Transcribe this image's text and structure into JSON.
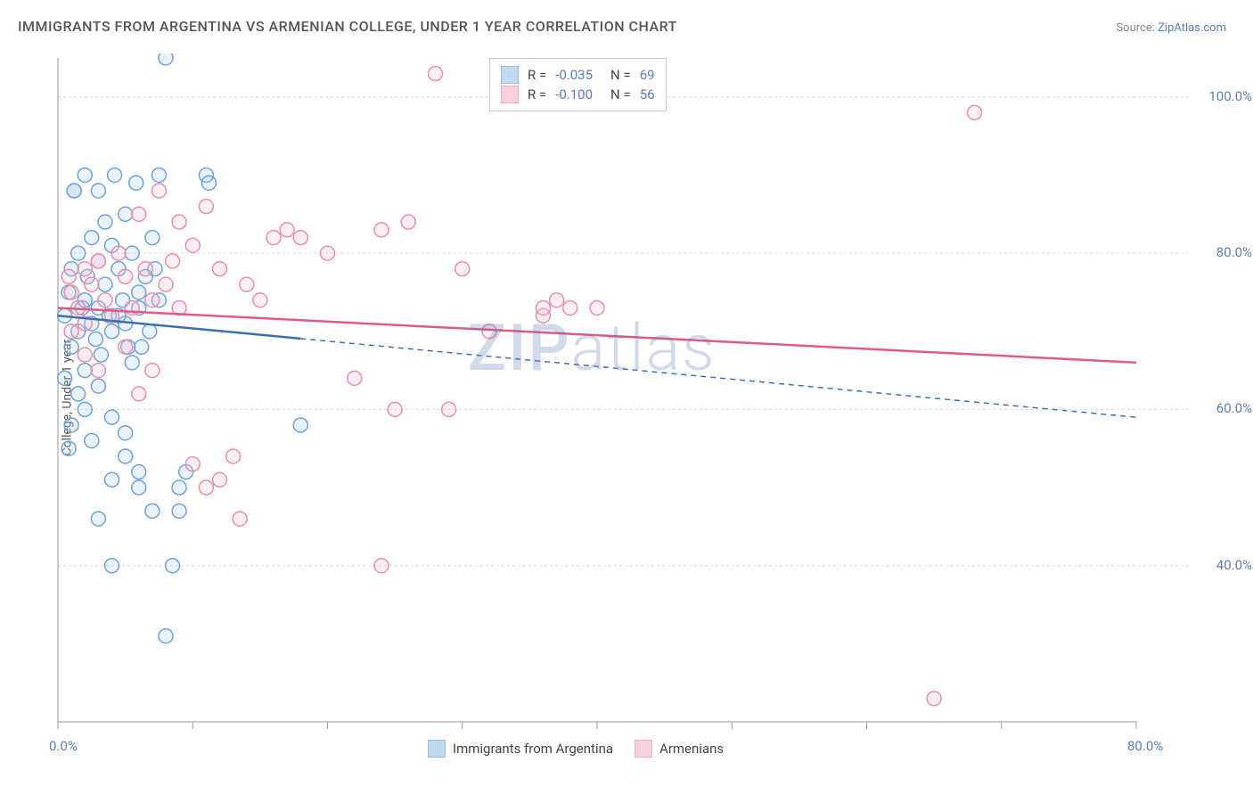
{
  "title": "IMMIGRANTS FROM ARGENTINA VS ARMENIAN COLLEGE, UNDER 1 YEAR CORRELATION CHART",
  "source_label": "Source:",
  "source_link": "ZipAtlas.com",
  "y_axis_label": "College, Under 1 year",
  "watermark": "ZIPatlas",
  "chart": {
    "type": "scatter",
    "xlim": [
      0,
      80
    ],
    "ylim": [
      20,
      105
    ],
    "x_ticks": [
      0,
      10,
      20,
      30,
      40,
      50,
      60,
      70,
      80
    ],
    "x_tick_labels": [
      "0.0%",
      "",
      "",
      "",
      "",
      "",
      "",
      "",
      "80.0%"
    ],
    "y_ticks": [
      40,
      60,
      80,
      100
    ],
    "y_tick_labels": [
      "40.0%",
      "60.0%",
      "80.0%",
      "100.0%"
    ],
    "grid_color": "#d8d8d8",
    "axis_color": "#999999",
    "background_color": "#ffffff",
    "marker_radius": 8,
    "marker_stroke_width": 1.5,
    "marker_fill_opacity": 0.25,
    "regression_line_width": 2.5,
    "series": [
      {
        "name": "Immigrants from Argentina",
        "color_stroke": "#6fa3d8",
        "color_fill": "#a8c9e8",
        "line_color": "#3b6fb5",
        "R": "-0.035",
        "N": "69",
        "regression": {
          "x1": 0,
          "y1": 72,
          "x2": 80,
          "y2": 59,
          "solid_until_x": 18
        },
        "points": [
          [
            0.5,
            72
          ],
          [
            0.8,
            75
          ],
          [
            1,
            78
          ],
          [
            1,
            68
          ],
          [
            1.2,
            88
          ],
          [
            1.5,
            80
          ],
          [
            1.5,
            70
          ],
          [
            1.8,
            73
          ],
          [
            2,
            90
          ],
          [
            2,
            65
          ],
          [
            2,
            74
          ],
          [
            2.2,
            77
          ],
          [
            2.5,
            82
          ],
          [
            2.5,
            71
          ],
          [
            2.8,
            69
          ],
          [
            3,
            88
          ],
          [
            3,
            79
          ],
          [
            3,
            73
          ],
          [
            3.2,
            67
          ],
          [
            3.5,
            84
          ],
          [
            3.5,
            76
          ],
          [
            3.8,
            72
          ],
          [
            4,
            81
          ],
          [
            4,
            70
          ],
          [
            4.2,
            90
          ],
          [
            4.5,
            78
          ],
          [
            4.8,
            74
          ],
          [
            5,
            85
          ],
          [
            5,
            71
          ],
          [
            5.2,
            68
          ],
          [
            5.5,
            80
          ],
          [
            5.8,
            89
          ],
          [
            6,
            75
          ],
          [
            6,
            73
          ],
          [
            6.5,
            77
          ],
          [
            6.8,
            70
          ],
          [
            7,
            82
          ],
          [
            7.2,
            78
          ],
          [
            7.5,
            90
          ],
          [
            7.5,
            74
          ],
          [
            0.5,
            64
          ],
          [
            1,
            58
          ],
          [
            1.5,
            62
          ],
          [
            2,
            60
          ],
          [
            2.5,
            56
          ],
          [
            3,
            63
          ],
          [
            4,
            59
          ],
          [
            5,
            57
          ],
          [
            3,
            46
          ],
          [
            6,
            52
          ],
          [
            6,
            50
          ],
          [
            7,
            47
          ],
          [
            5,
            54
          ],
          [
            4,
            51
          ],
          [
            4.5,
            72
          ],
          [
            0.8,
            55
          ],
          [
            1.2,
            88
          ],
          [
            8,
            105
          ],
          [
            5.5,
            66
          ],
          [
            6.2,
            68
          ],
          [
            11,
            90
          ],
          [
            11.2,
            89
          ],
          [
            18,
            58
          ],
          [
            4,
            40
          ],
          [
            8,
            31
          ],
          [
            9,
            50
          ],
          [
            9.5,
            52
          ],
          [
            9,
            47
          ],
          [
            8.5,
            40
          ]
        ]
      },
      {
        "name": "Armenians",
        "color_stroke": "#e890a8",
        "color_fill": "#f5c0d0",
        "line_color": "#e05a85",
        "R": "-0.100",
        "N": "56",
        "regression": {
          "x1": 0,
          "y1": 73,
          "x2": 80,
          "y2": 66,
          "solid_until_x": 80
        },
        "points": [
          [
            1,
            75
          ],
          [
            1.5,
            73
          ],
          [
            2,
            78
          ],
          [
            2.5,
            76
          ],
          [
            3,
            79
          ],
          [
            3.5,
            74
          ],
          [
            4,
            72
          ],
          [
            4.5,
            80
          ],
          [
            5,
            77
          ],
          [
            5.5,
            73
          ],
          [
            6,
            85
          ],
          [
            6.5,
            78
          ],
          [
            7,
            74
          ],
          [
            7.5,
            88
          ],
          [
            8,
            76
          ],
          [
            8.5,
            79
          ],
          [
            9,
            73
          ],
          [
            10,
            81
          ],
          [
            11,
            86
          ],
          [
            12,
            78
          ],
          [
            10,
            53
          ],
          [
            11,
            50
          ],
          [
            12,
            51
          ],
          [
            13,
            54
          ],
          [
            13.5,
            46
          ],
          [
            6,
            62
          ],
          [
            7,
            65
          ],
          [
            5,
            68
          ],
          [
            2,
            67
          ],
          [
            3,
            65
          ],
          [
            16,
            82
          ],
          [
            17,
            83
          ],
          [
            18,
            82
          ],
          [
            20,
            80
          ],
          [
            22,
            64
          ],
          [
            24,
            83
          ],
          [
            26,
            84
          ],
          [
            25,
            60
          ],
          [
            28,
            103
          ],
          [
            29,
            60
          ],
          [
            30,
            78
          ],
          [
            32,
            70
          ],
          [
            36,
            72
          ],
          [
            37,
            74
          ],
          [
            36,
            73
          ],
          [
            38,
            73
          ],
          [
            40,
            73
          ],
          [
            68,
            98
          ],
          [
            65,
            23
          ],
          [
            14,
            76
          ],
          [
            15,
            74
          ],
          [
            1,
            70
          ],
          [
            2,
            71
          ],
          [
            0.8,
            77
          ],
          [
            24,
            40
          ],
          [
            9,
            84
          ]
        ]
      }
    ]
  },
  "legend_top": {
    "R_label": "R =",
    "N_label": "N ="
  },
  "legend_bottom_labels": [
    "Immigrants from Argentina",
    "Armenians"
  ]
}
